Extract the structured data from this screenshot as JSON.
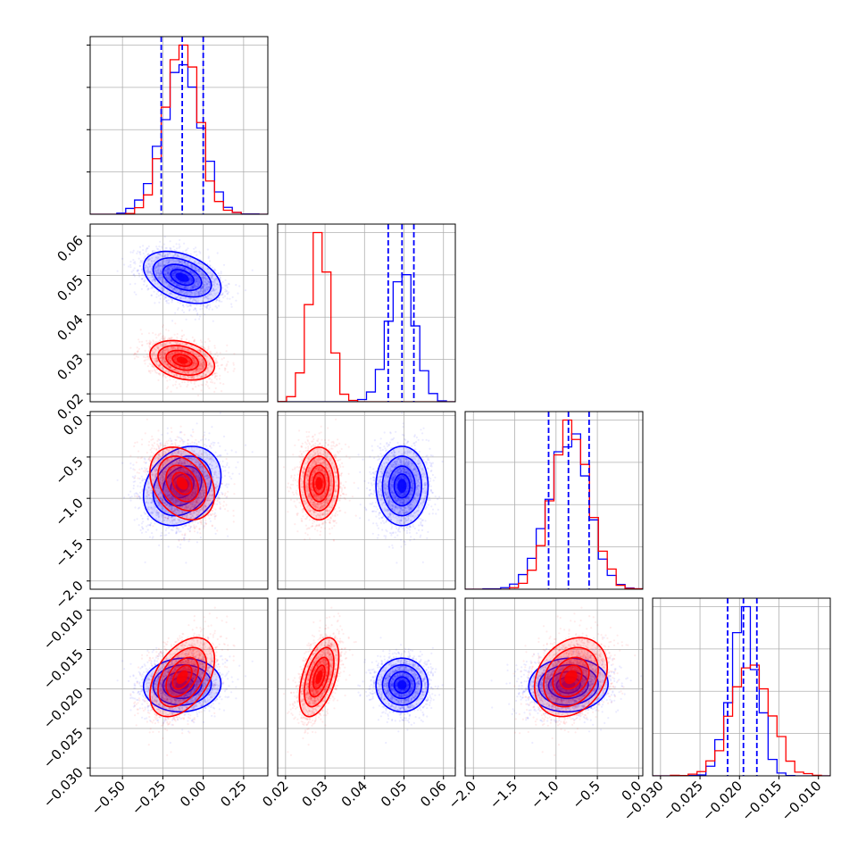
{
  "chart_data": {
    "type": "corner",
    "colors": {
      "series_a": "#0000ff",
      "series_b": "#ff0000"
    },
    "grid": true,
    "parameters": [
      {
        "index": 0,
        "range": [
          -0.7,
          0.4
        ],
        "ticks": [
          -0.5,
          -0.25,
          0.0,
          0.25
        ],
        "tick_labels": [
          "−0.50",
          "−0.25",
          "0.00",
          "0.25"
        ]
      },
      {
        "index": 1,
        "range": [
          0.018,
          0.063
        ],
        "ticks": [
          0.02,
          0.03,
          0.04,
          0.05,
          0.06
        ],
        "tick_labels": [
          "0.02",
          "0.03",
          "0.04",
          "0.05",
          "0.06"
        ]
      },
      {
        "index": 2,
        "range": [
          -2.1,
          0.05
        ],
        "ticks": [
          -2.0,
          -1.5,
          -1.0,
          -0.5,
          0.0
        ],
        "tick_labels": [
          "−2.0",
          "−1.5",
          "−1.0",
          "−0.5",
          "0.0"
        ]
      },
      {
        "index": 3,
        "range": [
          -0.031,
          -0.0085
        ],
        "ticks": [
          -0.03,
          -0.025,
          -0.02,
          -0.015,
          -0.01
        ],
        "tick_labels": [
          "−0.030",
          "−0.025",
          "−0.020",
          "−0.015",
          "−0.010"
        ]
      }
    ],
    "series": [
      {
        "color": "#0000ff",
        "mean": [
          -0.13,
          0.0495,
          -0.85,
          -0.0195
        ],
        "sd": [
          0.12,
          0.0033,
          0.24,
          0.0017
        ],
        "quantiles_16_50_84": [
          [
            -0.26,
            -0.13,
            0.0
          ],
          [
            0.046,
            0.0495,
            0.0525
          ],
          [
            -1.09,
            -0.85,
            -0.6
          ],
          [
            -0.0215,
            -0.0195,
            -0.0178
          ]
        ],
        "correlations": {
          "0-1": -0.4,
          "0-2": 0.25,
          "0-3": 0.05,
          "1-2": 0.0,
          "1-3": 0.0,
          "2-3": 0.05
        }
      },
      {
        "color": "#ff0000",
        "mean": [
          -0.13,
          0.0285,
          -0.82,
          -0.0185
        ],
        "sd": [
          0.1,
          0.0025,
          0.22,
          0.0025
        ],
        "correlations": {
          "0-1": -0.3,
          "0-2": -0.3,
          "0-3": 0.45,
          "1-2": 0.0,
          "1-3": 0.5,
          "2-3": 0.25
        }
      }
    ]
  }
}
